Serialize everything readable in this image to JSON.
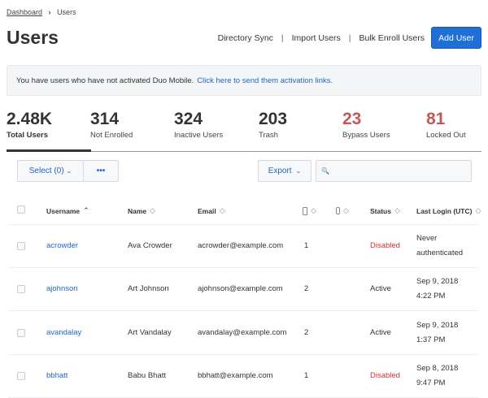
{
  "breadcrumb": {
    "parent": "Dashboard",
    "separator": "›",
    "current": "Users"
  },
  "header": {
    "title": "Users",
    "links": [
      "Directory Sync",
      "Import Users",
      "Bulk Enroll Users"
    ],
    "add_button": "Add User"
  },
  "banner": {
    "text": "You have users who have not activated Duo Mobile.",
    "link": "Click here to send them activation links."
  },
  "stats": [
    {
      "value": "2.48K",
      "label": "Total Users",
      "active": true
    },
    {
      "value": "314",
      "label": "Not Enrolled"
    },
    {
      "value": "324",
      "label": "Inactive Users"
    },
    {
      "value": "203",
      "label": "Trash"
    },
    {
      "value": "23",
      "label": "Bypass Users",
      "color": "#c05a5a"
    },
    {
      "value": "81",
      "label": "Locked Out",
      "color": "#c05a5a"
    }
  ],
  "toolbar": {
    "select_label": "Select (0)",
    "more_label": "•••",
    "export_label": "Export",
    "search_placeholder": ""
  },
  "table": {
    "columns": [
      "Username",
      "Name",
      "Email",
      "",
      "",
      "Status",
      "Last Login (UTC)"
    ],
    "rows": [
      {
        "username": "acrowder",
        "name": "Ava Crowder",
        "email": "acrowder@example.com",
        "phones": "1",
        "tokens": "",
        "status": "Disabled",
        "login1": "Never",
        "login2": "authenticated"
      },
      {
        "username": "ajohnson",
        "name": "Art Johnson",
        "email": "ajohnson@example.com",
        "phones": "2",
        "tokens": "",
        "status": "Active",
        "login1": "Sep 9, 2018",
        "login2": "4:22 PM"
      },
      {
        "username": "avandalay",
        "name": "Art Vandalay",
        "email": "avandalay@example.com",
        "phones": "2",
        "tokens": "",
        "status": "Active",
        "login1": "Sep 9, 2018",
        "login2": "1:37 PM"
      },
      {
        "username": "bbhatt",
        "name": "Babu Bhatt",
        "email": "bbhatt@example.com",
        "phones": "1",
        "tokens": "",
        "status": "Disabled",
        "login1": "Sep 8, 2018",
        "login2": "9:47 PM"
      }
    ]
  },
  "colors": {
    "accent": "#1f6fd6",
    "link": "#2466c3",
    "disabled": "#cc3333",
    "stat_warning": "#c05a5a"
  }
}
